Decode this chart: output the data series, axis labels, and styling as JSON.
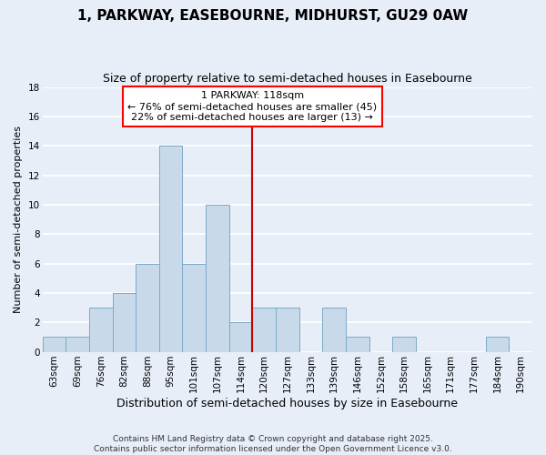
{
  "title": "1, PARKWAY, EASEBOURNE, MIDHURST, GU29 0AW",
  "subtitle": "Size of property relative to semi-detached houses in Easebourne",
  "xlabel": "Distribution of semi-detached houses by size in Easebourne",
  "ylabel": "Number of semi-detached properties",
  "categories": [
    "63sqm",
    "69sqm",
    "76sqm",
    "82sqm",
    "88sqm",
    "95sqm",
    "101sqm",
    "107sqm",
    "114sqm",
    "120sqm",
    "127sqm",
    "133sqm",
    "139sqm",
    "146sqm",
    "152sqm",
    "158sqm",
    "165sqm",
    "171sqm",
    "177sqm",
    "184sqm",
    "190sqm"
  ],
  "values": [
    1,
    1,
    3,
    4,
    6,
    14,
    6,
    10,
    2,
    3,
    3,
    0,
    3,
    1,
    0,
    1,
    0,
    0,
    0,
    1,
    0
  ],
  "bar_color": "#c8daea",
  "bar_edge_color": "#7baac8",
  "background_color": "#e8eef8",
  "grid_color": "#ffffff",
  "property_line_x": 8.5,
  "property_line_color": "#cc0000",
  "ann_line1": "1 PARKWAY: 118sqm",
  "ann_line2": "← 76% of semi-detached houses are smaller (45)",
  "ann_line3": "22% of semi-detached houses are larger (13) →",
  "footer_text": "Contains HM Land Registry data © Crown copyright and database right 2025.\nContains public sector information licensed under the Open Government Licence v3.0.",
  "ylim": [
    0,
    18
  ],
  "yticks": [
    0,
    2,
    4,
    6,
    8,
    10,
    12,
    14,
    16,
    18
  ],
  "title_fontsize": 11,
  "subtitle_fontsize": 9,
  "ylabel_fontsize": 8,
  "xlabel_fontsize": 9,
  "tick_fontsize": 7.5,
  "ann_fontsize": 8,
  "footer_fontsize": 6.5
}
